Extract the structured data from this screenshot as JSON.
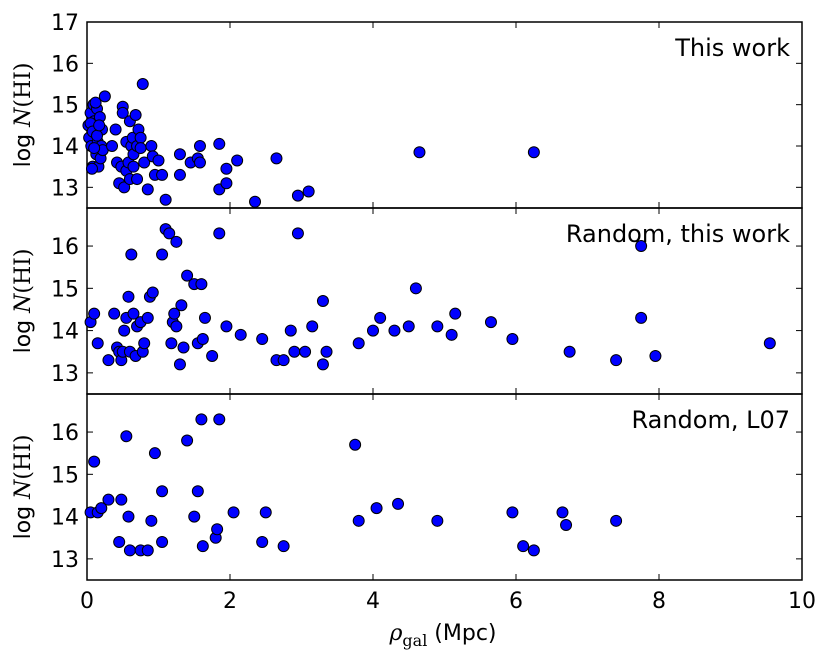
{
  "chart_data": [
    {
      "type": "scatter",
      "label": "This work",
      "ylabel": "log N(HI)",
      "xlim": [
        0,
        10
      ],
      "ylim": [
        12.5,
        17
      ],
      "yticks": [
        "13",
        "14",
        "15",
        "16",
        "17"
      ],
      "marker_color": "#0000ff",
      "points": [
        [
          0.02,
          14.5
        ],
        [
          0.03,
          14.2
        ],
        [
          0.05,
          14.8
        ],
        [
          0.06,
          14.0
        ],
        [
          0.08,
          13.5
        ],
        [
          0.09,
          15.0
        ],
        [
          0.1,
          14.6
        ],
        [
          0.12,
          14.3
        ],
        [
          0.13,
          13.8
        ],
        [
          0.14,
          14.9
        ],
        [
          0.15,
          14.1
        ],
        [
          0.16,
          13.5
        ],
        [
          0.18,
          14.7
        ],
        [
          0.19,
          13.7
        ],
        [
          0.2,
          14.0
        ],
        [
          0.21,
          14.4
        ],
        [
          0.22,
          13.9
        ],
        [
          0.05,
          14.55
        ],
        [
          0.08,
          14.35
        ],
        [
          0.1,
          13.95
        ],
        [
          0.12,
          15.05
        ],
        [
          0.14,
          14.25
        ],
        [
          0.17,
          14.5
        ],
        [
          0.07,
          13.45
        ],
        [
          0.25,
          15.2
        ],
        [
          0.35,
          14.0
        ],
        [
          0.4,
          14.4
        ],
        [
          0.42,
          13.6
        ],
        [
          0.45,
          13.1
        ],
        [
          0.48,
          13.5
        ],
        [
          0.5,
          14.95
        ],
        [
          0.5,
          14.8
        ],
        [
          0.52,
          13.0
        ],
        [
          0.55,
          14.1
        ],
        [
          0.55,
          13.4
        ],
        [
          0.58,
          13.6
        ],
        [
          0.6,
          14.6
        ],
        [
          0.6,
          13.2
        ],
        [
          0.62,
          14.0
        ],
        [
          0.64,
          14.2
        ],
        [
          0.65,
          13.5
        ],
        [
          0.65,
          13.8
        ],
        [
          0.68,
          14.75
        ],
        [
          0.7,
          14.0
        ],
        [
          0.7,
          13.2
        ],
        [
          0.72,
          14.4
        ],
        [
          0.75,
          14.2
        ],
        [
          0.75,
          13.95
        ],
        [
          0.78,
          15.5
        ],
        [
          0.8,
          13.6
        ],
        [
          0.85,
          12.95
        ],
        [
          0.9,
          14.0
        ],
        [
          0.92,
          13.75
        ],
        [
          0.95,
          13.3
        ],
        [
          1.0,
          13.65
        ],
        [
          1.05,
          13.3
        ],
        [
          1.1,
          12.7
        ],
        [
          1.3,
          13.8
        ],
        [
          1.3,
          13.3
        ],
        [
          1.45,
          13.6
        ],
        [
          1.55,
          13.7
        ],
        [
          1.58,
          13.6
        ],
        [
          1.58,
          14.0
        ],
        [
          1.85,
          14.05
        ],
        [
          1.85,
          12.95
        ],
        [
          1.95,
          13.45
        ],
        [
          1.95,
          13.1
        ],
        [
          2.1,
          13.65
        ],
        [
          2.35,
          12.65
        ],
        [
          2.65,
          13.7
        ],
        [
          2.95,
          12.8
        ],
        [
          3.1,
          12.9
        ],
        [
          4.65,
          13.85
        ],
        [
          6.25,
          13.85
        ]
      ]
    },
    {
      "type": "scatter",
      "label": "Random, this work",
      "ylabel": "log N(HI)",
      "xlim": [
        0,
        10
      ],
      "ylim": [
        12.5,
        16.9
      ],
      "yticks": [
        "13",
        "14",
        "15",
        "16"
      ],
      "marker_color": "#0000ff",
      "points": [
        [
          0.05,
          14.2
        ],
        [
          0.1,
          14.4
        ],
        [
          0.15,
          13.7
        ],
        [
          0.3,
          13.3
        ],
        [
          0.38,
          14.4
        ],
        [
          0.42,
          13.6
        ],
        [
          0.45,
          13.5
        ],
        [
          0.48,
          13.3
        ],
        [
          0.5,
          13.5
        ],
        [
          0.52,
          14.0
        ],
        [
          0.55,
          14.3
        ],
        [
          0.58,
          14.8
        ],
        [
          0.6,
          13.5
        ],
        [
          0.62,
          15.8
        ],
        [
          0.65,
          14.4
        ],
        [
          0.68,
          13.4
        ],
        [
          0.7,
          14.1
        ],
        [
          0.75,
          14.2
        ],
        [
          0.78,
          13.5
        ],
        [
          0.8,
          13.7
        ],
        [
          0.85,
          14.3
        ],
        [
          0.88,
          14.8
        ],
        [
          0.92,
          14.9
        ],
        [
          1.05,
          15.8
        ],
        [
          1.1,
          16.4
        ],
        [
          1.15,
          16.3
        ],
        [
          1.18,
          13.7
        ],
        [
          1.2,
          14.2
        ],
        [
          1.22,
          14.4
        ],
        [
          1.25,
          14.1
        ],
        [
          1.25,
          16.1
        ],
        [
          1.3,
          13.2
        ],
        [
          1.32,
          14.6
        ],
        [
          1.35,
          13.6
        ],
        [
          1.4,
          15.3
        ],
        [
          1.5,
          15.1
        ],
        [
          1.55,
          13.7
        ],
        [
          1.6,
          15.1
        ],
        [
          1.62,
          13.8
        ],
        [
          1.65,
          14.3
        ],
        [
          1.75,
          13.4
        ],
        [
          1.85,
          16.3
        ],
        [
          1.95,
          14.1
        ],
        [
          2.15,
          13.9
        ],
        [
          2.45,
          13.8
        ],
        [
          2.65,
          13.3
        ],
        [
          2.75,
          13.3
        ],
        [
          2.85,
          14.0
        ],
        [
          2.9,
          13.5
        ],
        [
          2.95,
          16.3
        ],
        [
          3.05,
          13.5
        ],
        [
          3.15,
          14.1
        ],
        [
          3.3,
          14.7
        ],
        [
          3.3,
          13.2
        ],
        [
          3.35,
          13.5
        ],
        [
          3.8,
          13.7
        ],
        [
          4.0,
          14.0
        ],
        [
          4.1,
          14.3
        ],
        [
          4.3,
          14.0
        ],
        [
          4.5,
          14.1
        ],
        [
          4.6,
          15.0
        ],
        [
          4.9,
          14.1
        ],
        [
          5.1,
          13.9
        ],
        [
          5.15,
          14.4
        ],
        [
          5.65,
          14.2
        ],
        [
          5.95,
          13.8
        ],
        [
          6.75,
          13.5
        ],
        [
          7.4,
          13.3
        ],
        [
          7.75,
          16.0
        ],
        [
          7.75,
          14.3
        ],
        [
          7.95,
          13.4
        ],
        [
          9.55,
          13.7
        ]
      ]
    },
    {
      "type": "scatter",
      "label": "Random, L07",
      "ylabel": "log N(HI)",
      "xlabel": "ρ_gal (Mpc)",
      "xlim": [
        0,
        10
      ],
      "ylim": [
        12.5,
        16.9
      ],
      "yticks": [
        "13",
        "14",
        "15",
        "16"
      ],
      "xticks": [
        "0",
        "2",
        "4",
        "6",
        "8",
        "10"
      ],
      "marker_color": "#0000ff",
      "points": [
        [
          0.05,
          14.1
        ],
        [
          0.1,
          15.3
        ],
        [
          0.15,
          14.1
        ],
        [
          0.2,
          14.2
        ],
        [
          0.3,
          14.4
        ],
        [
          0.45,
          13.4
        ],
        [
          0.48,
          14.4
        ],
        [
          0.55,
          15.9
        ],
        [
          0.58,
          14.0
        ],
        [
          0.6,
          13.2
        ],
        [
          0.75,
          13.2
        ],
        [
          0.85,
          13.2
        ],
        [
          0.9,
          13.9
        ],
        [
          0.95,
          15.5
        ],
        [
          1.05,
          14.6
        ],
        [
          1.05,
          13.4
        ],
        [
          1.4,
          15.8
        ],
        [
          1.5,
          14.0
        ],
        [
          1.55,
          14.6
        ],
        [
          1.6,
          16.3
        ],
        [
          1.62,
          13.3
        ],
        [
          1.85,
          16.3
        ],
        [
          1.8,
          13.5
        ],
        [
          1.82,
          13.7
        ],
        [
          2.05,
          14.1
        ],
        [
          2.45,
          13.4
        ],
        [
          2.5,
          14.1
        ],
        [
          2.75,
          13.3
        ],
        [
          3.75,
          15.7
        ],
        [
          3.8,
          13.9
        ],
        [
          4.05,
          14.2
        ],
        [
          4.35,
          14.3
        ],
        [
          4.9,
          13.9
        ],
        [
          5.95,
          14.1
        ],
        [
          6.1,
          13.3
        ],
        [
          6.25,
          13.2
        ],
        [
          6.65,
          14.1
        ],
        [
          6.7,
          13.8
        ],
        [
          7.4,
          13.9
        ]
      ]
    }
  ]
}
